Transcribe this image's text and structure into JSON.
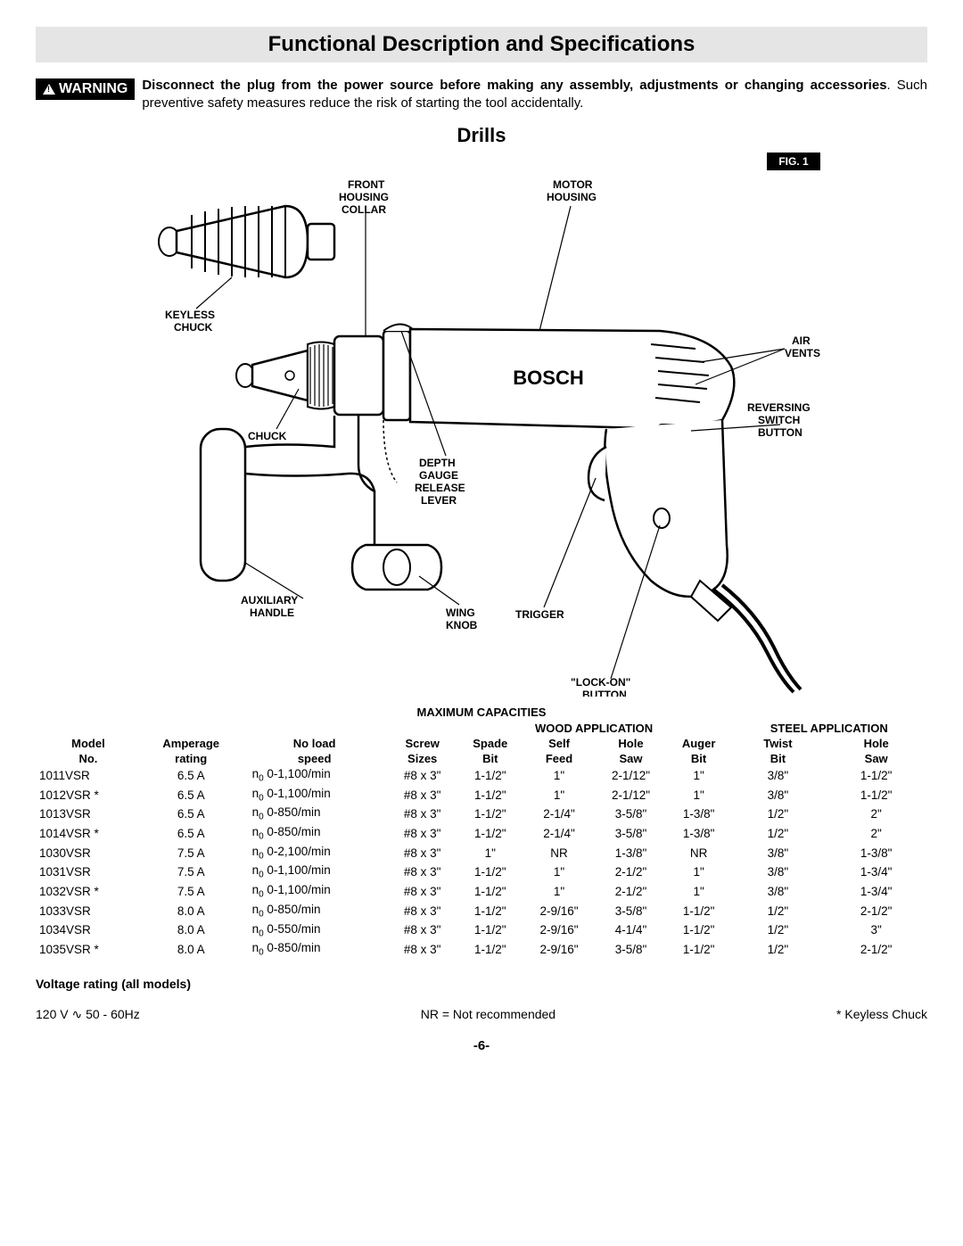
{
  "title": "Functional Description and Specifications",
  "warning": {
    "badge": "WARNING",
    "bold_lead": "Disconnect the plug from the power source before making any assembly, adjustments or changing accessories",
    "rest": ". Such preventive safety measures reduce the risk of starting the tool accidentally."
  },
  "drills_heading": "Drills",
  "figure": {
    "badge": "FIG. 1",
    "labels": {
      "front_housing_collar": "FRONT HOUSING COLLAR",
      "motor_housing": "MOTOR HOUSING",
      "keyless_chuck": "KEYLESS CHUCK",
      "chuck": "CHUCK",
      "air_vents": "AIR VENTS",
      "reversing_switch_button": "REVERSING SWITCH BUTTON",
      "depth_gauge_release_lever": "DEPTH GAUGE RELEASE LEVER",
      "auxiliary_handle": "AUXILIARY HANDLE",
      "wing_knob": "WING KNOB",
      "trigger": "TRIGGER",
      "lock_on_button": "\"LOCK-ON\" BUTTON",
      "brand": "BOSCH"
    }
  },
  "table": {
    "capacities_title": "MAXIMUM CAPACITIES",
    "wood_app": "WOOD APPLICATION",
    "steel_app": "STEEL APPLICATION",
    "headers": {
      "model": [
        "Model",
        "No."
      ],
      "amperage": [
        "Amperage",
        "rating"
      ],
      "speed": [
        "No load",
        "speed"
      ],
      "screw": [
        "Screw",
        "Sizes"
      ],
      "spade": [
        "Spade",
        "Bit"
      ],
      "self": [
        "Self",
        "Feed"
      ],
      "hole": [
        "Hole",
        "Saw"
      ],
      "auger": [
        "Auger",
        "Bit"
      ],
      "twist": [
        "Twist",
        "Bit"
      ],
      "hole2": [
        "Hole",
        "Saw"
      ]
    },
    "rows": [
      {
        "model": "1011VSR",
        "amp": "6.5 A",
        "speed": "0-1,100/min",
        "screw": "#8 x 3\"",
        "spade": "1-1/2\"",
        "self": "1\"",
        "hole": "2-1/12\"",
        "auger": "1\"",
        "twist": "3/8\"",
        "hole2": "1-1/2\""
      },
      {
        "model": "1012VSR *",
        "amp": "6.5 A",
        "speed": "0-1,100/min",
        "screw": "#8 x 3\"",
        "spade": "1-1/2\"",
        "self": "1\"",
        "hole": "2-1/12\"",
        "auger": "1\"",
        "twist": "3/8\"",
        "hole2": "1-1/2\""
      },
      {
        "model": "1013VSR",
        "amp": "6.5 A",
        "speed": "0-850/min",
        "screw": "#8 x 3\"",
        "spade": "1-1/2\"",
        "self": "2-1/4\"",
        "hole": "3-5/8\"",
        "auger": "1-3/8\"",
        "twist": "1/2\"",
        "hole2": "2\""
      },
      {
        "model": "1014VSR *",
        "amp": "6.5 A",
        "speed": "0-850/min",
        "screw": "#8 x 3\"",
        "spade": "1-1/2\"",
        "self": "2-1/4\"",
        "hole": "3-5/8\"",
        "auger": "1-3/8\"",
        "twist": "1/2\"",
        "hole2": "2\""
      },
      {
        "model": "1030VSR",
        "amp": "7.5 A",
        "speed": "0-2,100/min",
        "screw": "#8 x 3\"",
        "spade": "1\"",
        "self": "NR",
        "hole": "1-3/8\"",
        "auger": "NR",
        "twist": "3/8\"",
        "hole2": "1-3/8\""
      },
      {
        "model": "1031VSR",
        "amp": "7.5 A",
        "speed": "0-1,100/min",
        "screw": "#8 x 3\"",
        "spade": "1-1/2\"",
        "self": "1\"",
        "hole": "2-1/2\"",
        "auger": "1\"",
        "twist": "3/8\"",
        "hole2": "1-3/4\""
      },
      {
        "model": "1032VSR *",
        "amp": "7.5 A",
        "speed": "0-1,100/min",
        "screw": "#8 x 3\"",
        "spade": "1-1/2\"",
        "self": "1\"",
        "hole": "2-1/2\"",
        "auger": "1\"",
        "twist": "3/8\"",
        "hole2": "1-3/4\""
      },
      {
        "model": "1033VSR",
        "amp": "8.0 A",
        "speed": "0-850/min",
        "screw": "#8 x 3\"",
        "spade": "1-1/2\"",
        "self": "2-9/16\"",
        "hole": "3-5/8\"",
        "auger": "1-1/2\"",
        "twist": "1/2\"",
        "hole2": "2-1/2\""
      },
      {
        "model": "1034VSR",
        "amp": "8.0 A",
        "speed": "0-550/min",
        "screw": "#8 x 3\"",
        "spade": "1-1/2\"",
        "self": "2-9/16\"",
        "hole": "4-1/4\"",
        "auger": "1-1/2\"",
        "twist": "1/2\"",
        "hole2": "3\""
      },
      {
        "model": "1035VSR *",
        "amp": "8.0 A",
        "speed": "0-850/min",
        "screw": "#8 x 3\"",
        "spade": "1-1/2\"",
        "self": "2-9/16\"",
        "hole": "3-5/8\"",
        "auger": "1-1/2\"",
        "twist": "1/2\"",
        "hole2": "2-1/2\""
      }
    ],
    "n0_prefix": "n",
    "n0_sub": "0"
  },
  "footer": {
    "voltage_heading": "Voltage rating (all models)",
    "voltage": "120 V ∿ 50 - 60Hz",
    "nr": "NR = Not recommended",
    "keyless": "* Keyless Chuck",
    "page": "-6-"
  }
}
